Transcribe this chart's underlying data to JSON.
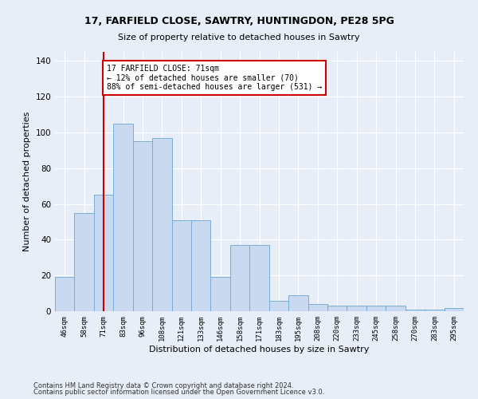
{
  "title1": "17, FARFIELD CLOSE, SAWTRY, HUNTINGDON, PE28 5PG",
  "title2": "Size of property relative to detached houses in Sawtry",
  "xlabel": "Distribution of detached houses by size in Sawtry",
  "ylabel": "Number of detached properties",
  "categories": [
    "46sqm",
    "58sqm",
    "71sqm",
    "83sqm",
    "96sqm",
    "108sqm",
    "121sqm",
    "133sqm",
    "146sqm",
    "158sqm",
    "171sqm",
    "183sqm",
    "195sqm",
    "208sqm",
    "220sqm",
    "233sqm",
    "245sqm",
    "258sqm",
    "270sqm",
    "283sqm",
    "295sqm"
  ],
  "values": [
    19,
    55,
    65,
    105,
    95,
    97,
    51,
    51,
    19,
    37,
    37,
    6,
    9,
    4,
    3,
    3,
    3,
    3,
    1,
    1,
    2
  ],
  "bar_color": "#c9d9f0",
  "bar_edge_color": "#7aadd4",
  "highlight_index": 2,
  "highlight_line_color": "#cc0000",
  "annotation_text": "17 FARFIELD CLOSE: 71sqm\n← 12% of detached houses are smaller (70)\n88% of semi-detached houses are larger (531) →",
  "annotation_box_color": "#cc0000",
  "ylim": [
    0,
    145
  ],
  "yticks": [
    0,
    20,
    40,
    60,
    80,
    100,
    120,
    140
  ],
  "footer1": "Contains HM Land Registry data © Crown copyright and database right 2024.",
  "footer2": "Contains public sector information licensed under the Open Government Licence v3.0.",
  "background_color": "#e8eef8",
  "plot_bg_color": "#e8eef8"
}
